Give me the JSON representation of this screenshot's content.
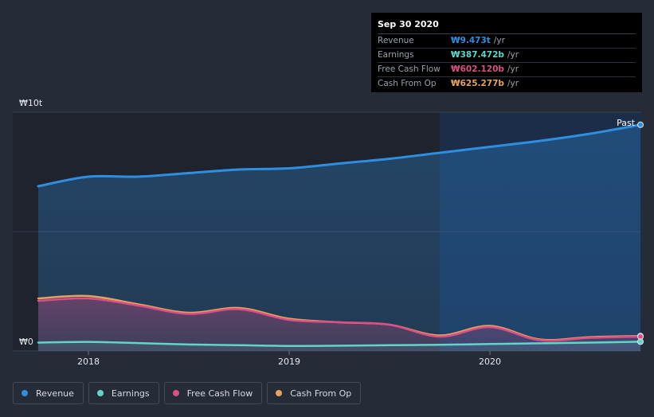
{
  "chart_data": {
    "type": "area",
    "x": [
      2017.75,
      2018.0,
      2018.25,
      2018.5,
      2018.75,
      2019.0,
      2019.25,
      2019.5,
      2019.75,
      2020.0,
      2020.25,
      2020.5,
      2020.75
    ],
    "series": [
      {
        "name": "Revenue",
        "color": "#2e8fe0",
        "values": [
          6.9,
          7.3,
          7.3,
          7.45,
          7.6,
          7.65,
          7.85,
          8.05,
          8.3,
          8.55,
          8.8,
          9.1,
          9.473
        ]
      },
      {
        "name": "Earnings",
        "color": "#5fd6c8",
        "values": [
          0.35,
          0.38,
          0.33,
          0.27,
          0.24,
          0.21,
          0.22,
          0.24,
          0.26,
          0.29,
          0.32,
          0.35,
          0.387
        ]
      },
      {
        "name": "Free Cash Flow",
        "color": "#d94f86",
        "values": [
          2.1,
          2.2,
          1.9,
          1.55,
          1.75,
          1.3,
          1.2,
          1.1,
          0.6,
          1.0,
          0.45,
          0.55,
          0.602
        ]
      },
      {
        "name": "Cash From Op",
        "color": "#e8a35c",
        "values": [
          2.2,
          2.3,
          1.95,
          1.6,
          1.8,
          1.35,
          1.2,
          1.1,
          0.65,
          1.05,
          0.48,
          0.58,
          0.625
        ]
      }
    ],
    "y_ticks": [
      "₩10t",
      "₩0"
    ],
    "x_ticks": [
      {
        "label": "2018",
        "value": 2018
      },
      {
        "label": "2019",
        "value": 2019
      },
      {
        "label": "2020",
        "value": 2020
      }
    ],
    "ylim": [
      0,
      10
    ],
    "xlim": [
      2017.75,
      2020.75
    ],
    "past_start": 2019.75,
    "past_label": "Past",
    "grid": true,
    "legend_position": "bottom-left"
  },
  "tooltip": {
    "date": "Sep 30 2020",
    "unit": "/yr",
    "rows": [
      {
        "label": "Revenue",
        "value": "₩9.473t",
        "color": "#2e8fe0"
      },
      {
        "label": "Earnings",
        "value": "₩387.472b",
        "color": "#5fd6c8"
      },
      {
        "label": "Free Cash Flow",
        "value": "₩602.120b",
        "color": "#d94f86"
      },
      {
        "label": "Cash From Op",
        "value": "₩625.277b",
        "color": "#e8a35c"
      }
    ]
  },
  "legend": [
    {
      "label": "Revenue",
      "color": "#2e8fe0"
    },
    {
      "label": "Earnings",
      "color": "#5fd6c8"
    },
    {
      "label": "Free Cash Flow",
      "color": "#d94f86"
    },
    {
      "label": "Cash From Op",
      "color": "#e8a35c"
    }
  ]
}
